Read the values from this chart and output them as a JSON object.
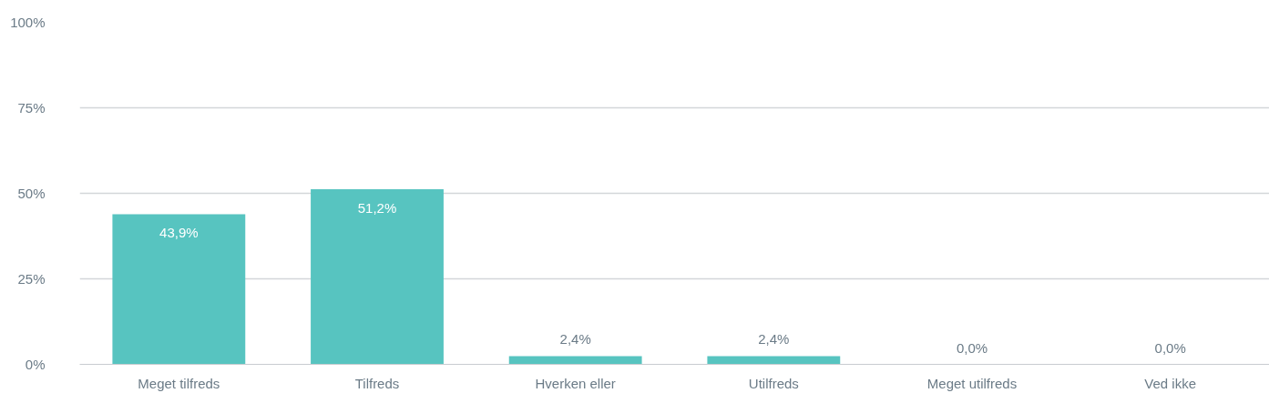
{
  "chart_data": {
    "type": "bar",
    "categories": [
      "Meget tilfreds",
      "Tilfreds",
      "Hverken eller",
      "Utilfreds",
      "Meget utilfreds",
      "Ved ikke"
    ],
    "values": [
      43.9,
      51.2,
      2.4,
      2.4,
      0.0,
      0.0
    ],
    "value_labels": [
      "43,9%",
      "51,2%",
      "2,4%",
      "2,4%",
      "0,0%",
      "0,0%"
    ],
    "color": "#57c4c0",
    "ylim": [
      0,
      100
    ],
    "yticks": [
      {
        "value": 0,
        "label": "0%"
      },
      {
        "value": 25,
        "label": "25%"
      },
      {
        "value": 50,
        "label": "50%"
      },
      {
        "value": 75,
        "label": "75%"
      },
      {
        "value": 100,
        "label": "100%"
      }
    ],
    "grid": "y",
    "legend": false
  }
}
